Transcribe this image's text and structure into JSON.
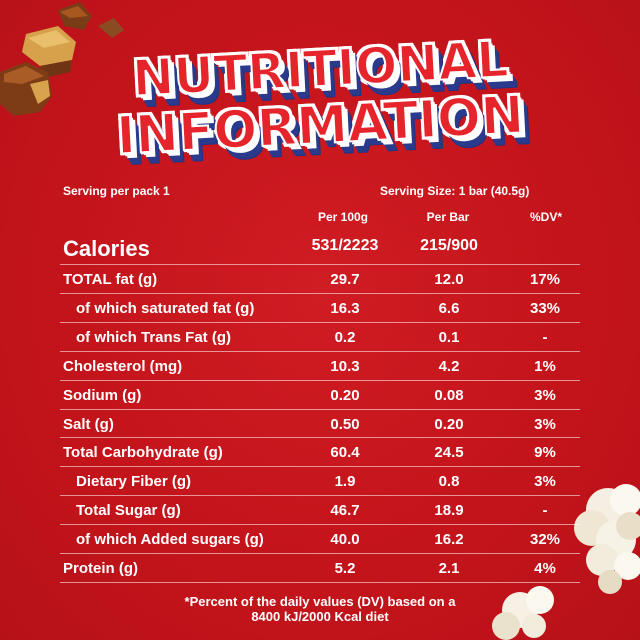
{
  "title": {
    "line1": "NUTRITIONAL",
    "line2": "INFORMATION"
  },
  "serving": {
    "per_pack": "Serving per pack 1",
    "size": "Serving Size: 1 bar (40.5g)"
  },
  "columns": {
    "per100": "Per 100g",
    "perbar": "Per Bar",
    "dv": "%DV*"
  },
  "calories": {
    "label": "Calories",
    "per100": "531/2223",
    "perbar": "215/900"
  },
  "rows": [
    {
      "label": "TOTAL fat (g)",
      "per100": "29.7",
      "perbar": "12.0",
      "dv": "17%"
    },
    {
      "label": "of which saturated fat (g)",
      "per100": "16.3",
      "perbar": "6.6",
      "dv": "33%"
    },
    {
      "label": "of which Trans Fat (g)",
      "per100": "0.2",
      "perbar": "0.1",
      "dv": "-"
    },
    {
      "label": "Cholesterol (mg)",
      "per100": "10.3",
      "perbar": "4.2",
      "dv": "1%"
    },
    {
      "label": "Sodium (g)",
      "per100": "0.20",
      "perbar": "0.08",
      "dv": "3%"
    },
    {
      "label": "Salt (g)",
      "per100": "0.50",
      "perbar": "0.20",
      "dv": "3%"
    },
    {
      "label": "Total Carbohydrate (g)",
      "per100": "60.4",
      "perbar": "24.5",
      "dv": "9%"
    },
    {
      "label": "Dietary Fiber (g)",
      "per100": "1.9",
      "perbar": "0.8",
      "dv": "3%"
    },
    {
      "label": "Total Sugar (g)",
      "per100": "46.7",
      "perbar": "18.9",
      "dv": "-"
    },
    {
      "label": "of which Added sugars (g)",
      "per100": "40.0",
      "perbar": "16.2",
      "dv": "32%"
    },
    {
      "label": "Protein (g)",
      "per100": "5.2",
      "perbar": "2.1",
      "dv": "4%"
    }
  ],
  "footnote": {
    "line1": "*Percent of the daily values (DV) based on a",
    "line2": "8400 kJ/2000 Kcal diet"
  },
  "colors": {
    "background": "#c8161d",
    "title_fill": "#e5252b",
    "title_shadow": "#2a3a8c",
    "text": "#ffffff"
  }
}
